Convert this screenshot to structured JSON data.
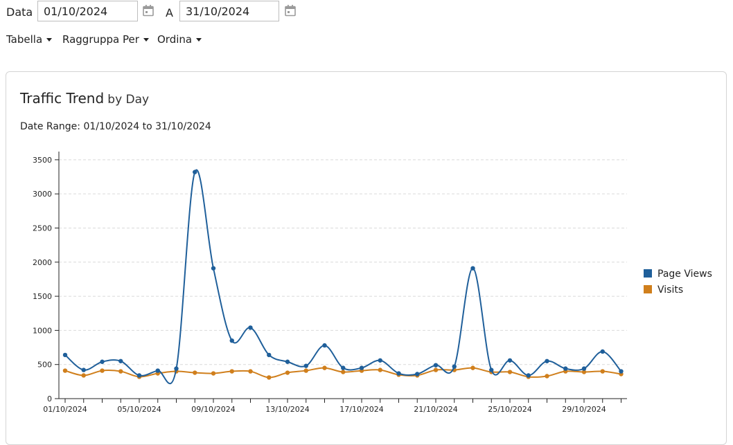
{
  "filters": {
    "date_label": "Data",
    "start_date": "01/10/2024",
    "to_label": "A",
    "end_date": "31/10/2024"
  },
  "menus": {
    "table": "Tabella",
    "group_by": "Raggruppa Per",
    "sort": "Ordina"
  },
  "icons": {
    "date_picker": "calendar-icon",
    "dropdown": "caret-down-icon"
  },
  "panel": {
    "title": "Traffic Trend",
    "title_suffix": "by Day",
    "range_label": "Date Range:",
    "range_from": "01/10/2024",
    "range_connector": "to",
    "range_to": "31/10/2024"
  },
  "chart_data": {
    "type": "line",
    "x": [
      "01/10/2024",
      "02/10/2024",
      "03/10/2024",
      "04/10/2024",
      "05/10/2024",
      "06/10/2024",
      "07/10/2024",
      "08/10/2024",
      "09/10/2024",
      "10/10/2024",
      "11/10/2024",
      "12/10/2024",
      "13/10/2024",
      "14/10/2024",
      "15/10/2024",
      "16/10/2024",
      "17/10/2024",
      "18/10/2024",
      "19/10/2024",
      "20/10/2024",
      "21/10/2024",
      "22/10/2024",
      "23/10/2024",
      "24/10/2024",
      "25/10/2024",
      "26/10/2024",
      "27/10/2024",
      "28/10/2024",
      "29/10/2024",
      "30/10/2024",
      "31/10/2024"
    ],
    "xtick_labels": [
      "01/10/2024",
      "05/10/2024",
      "09/10/2024",
      "13/10/2024",
      "17/10/2024",
      "21/10/2024",
      "25/10/2024",
      "29/10/2024"
    ],
    "series": [
      {
        "name": "Page Views",
        "color": "#1f5f9a",
        "values": [
          640,
          420,
          540,
          550,
          340,
          410,
          440,
          3320,
          1910,
          850,
          1040,
          640,
          540,
          480,
          780,
          450,
          450,
          560,
          370,
          360,
          490,
          470,
          1910,
          420,
          560,
          340,
          550,
          440,
          440,
          690,
          400
        ]
      },
      {
        "name": "Visits",
        "color": "#d07f1c",
        "values": [
          410,
          340,
          410,
          400,
          320,
          370,
          400,
          380,
          370,
          400,
          400,
          310,
          380,
          410,
          450,
          390,
          410,
          420,
          350,
          340,
          420,
          420,
          450,
          390,
          390,
          320,
          330,
          400,
          390,
          400,
          360
        ]
      }
    ],
    "ylim": [
      0,
      3600
    ],
    "yticks": [
      0,
      500,
      1000,
      1500,
      2000,
      2500,
      3000,
      3500
    ],
    "grid": true,
    "legend_position": "right"
  }
}
